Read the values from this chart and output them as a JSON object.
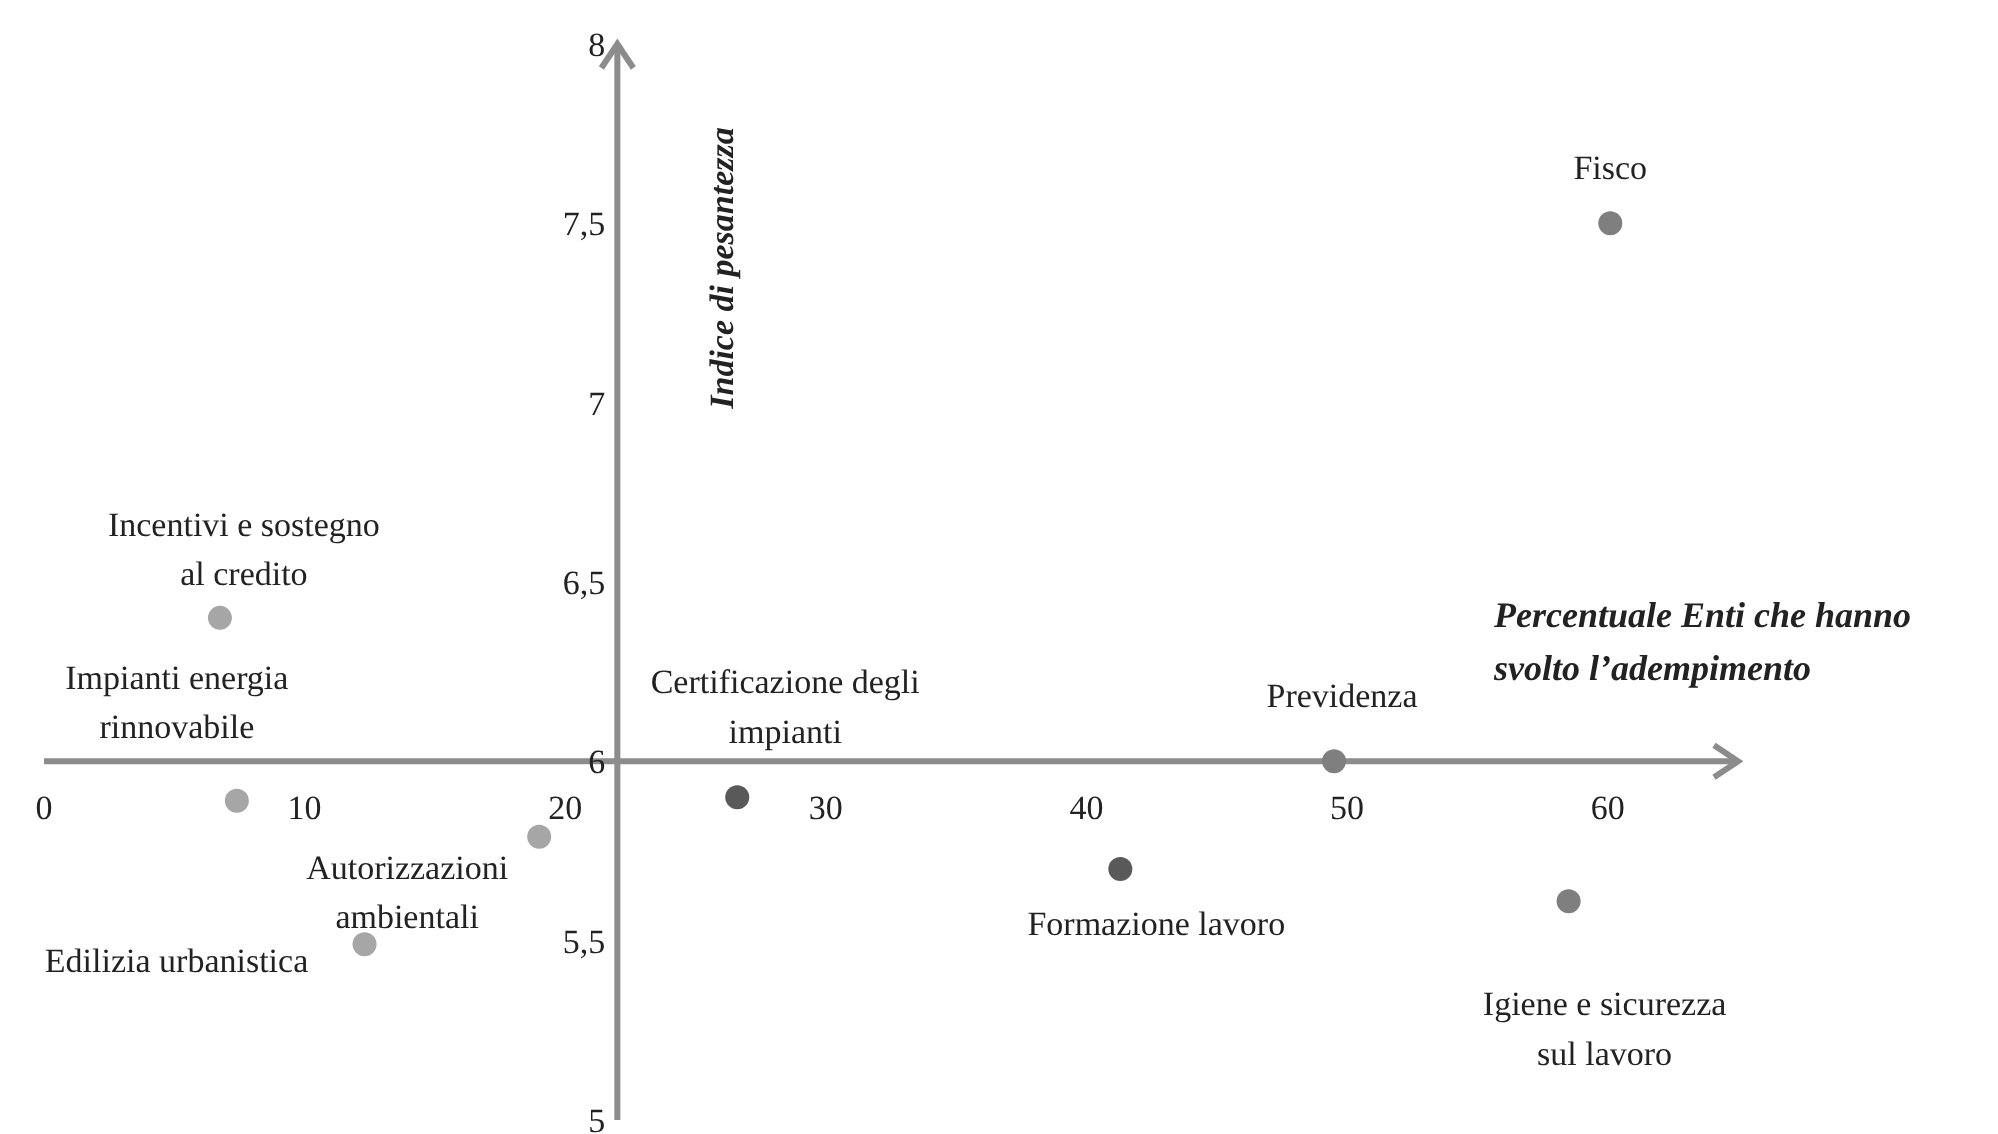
{
  "chart_data": {
    "type": "scatter",
    "xlabel": "Percentuale Enti che hanno\nsvolto l’adempimento",
    "ylabel": "Indice di pesantezza",
    "x": [
      6.75,
      7.4,
      19.0,
      12.3,
      26.6,
      60.1,
      49.5,
      41.3,
      58.5
    ],
    "values": [
      6.4,
      5.89,
      5.79,
      5.49,
      5.9,
      7.5,
      6.0,
      5.7,
      5.61
    ],
    "colors": [
      "#a6a6a6",
      "#a6a6a6",
      "#a6a6a6",
      "#a6a6a6",
      "#595959",
      "#7f7f7f",
      "#7f7f7f",
      "#595959",
      "#7f7f7f"
    ],
    "marker": "circle",
    "xlim": [
      0,
      65
    ],
    "ylim": [
      5,
      8
    ],
    "xticks": [
      0,
      10,
      20,
      30,
      40,
      50,
      60
    ],
    "yticks": [
      5,
      {
        "value": 5.5,
        "label": "5,5"
      },
      6,
      {
        "value": 6.5,
        "label": "6,5"
      },
      7,
      {
        "value": 7.5,
        "label": "7,5"
      },
      8
    ],
    "annotations": [
      {
        "text": "Incentivi e sostegno\nal credito",
        "x": 6.75,
        "y": 6.4
      },
      {
        "text": "Impianti energia\nrinnovabile",
        "x": 7.4,
        "y": 5.89
      },
      {
        "text": "Autorizzazioni\nambientali",
        "x": 19.0,
        "y": 5.79
      },
      {
        "text": "Edilizia urbanistica",
        "x": 12.3,
        "y": 5.49
      },
      {
        "text": "Certificazione degli\nimpianti",
        "x": 26.6,
        "y": 5.9
      },
      {
        "text": "Fisco",
        "x": 60.1,
        "y": 7.5
      },
      {
        "text": "Previdenza",
        "x": 49.5,
        "y": 6.0
      },
      {
        "text": "Formazione lavoro",
        "x": 41.3,
        "y": 5.7
      },
      {
        "text": "Igiene e sicurezza\nsul lavoro",
        "x": 58.5,
        "y": 5.61
      }
    ]
  }
}
